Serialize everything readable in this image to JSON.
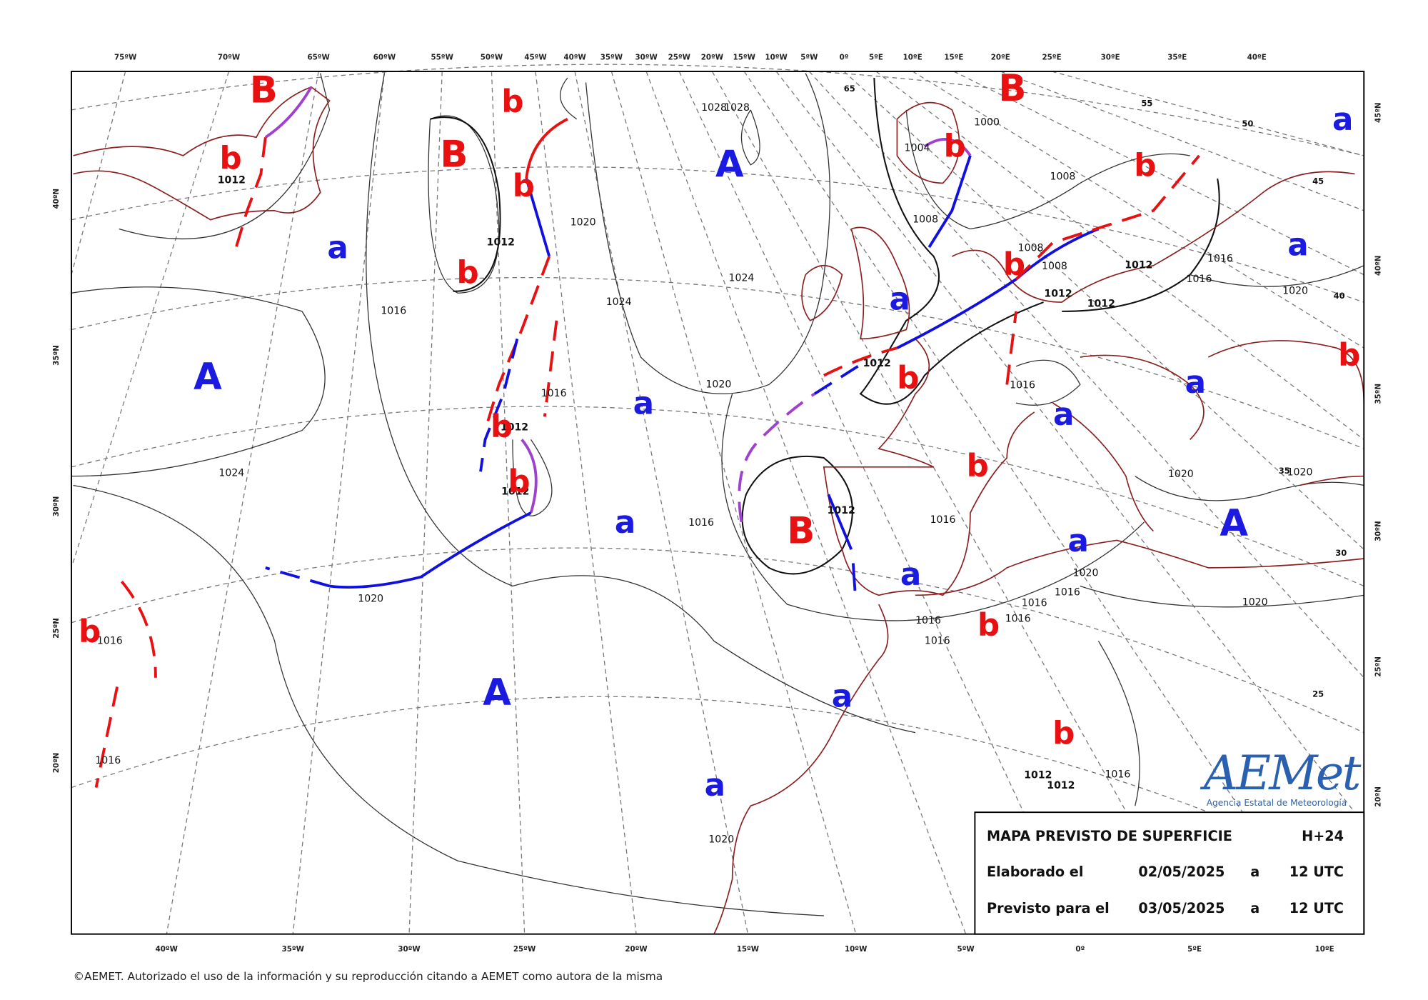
{
  "top_longitudes": [
    "75ºW",
    "70ºW",
    "65ºW",
    "60ºW",
    "55ºW",
    "50ºW",
    "45ºW",
    "40ºW",
    "35ºW",
    "30ºW",
    "25ºW",
    "20ºW",
    "15ºW",
    "10ºW",
    "5ºW",
    "0º",
    "5ºE",
    "10ºE",
    "15ºE",
    "20ºE",
    "25ºE",
    "30ºE",
    "35ºE",
    "40ºE"
  ],
  "bottom_longitudes": [
    "40ºW",
    "35ºW",
    "30ºW",
    "25ºW",
    "20ºW",
    "15ºW",
    "10ºW",
    "5ºW",
    "0º",
    "5ºE",
    "10ºE"
  ],
  "left_latitudes": [
    "40ºN",
    "35ºN",
    "30ºN",
    "25ºN",
    "20ºN"
  ],
  "right_latitudes": [
    "45ºN",
    "40ºN",
    "35ºN",
    "30ºN",
    "25ºN",
    "20ºN"
  ],
  "isobar_labels": [
    "1012",
    "1012",
    "1020",
    "1024",
    "1024",
    "1016",
    "1028",
    "1028",
    "1020",
    "1016",
    "1012",
    "1024",
    "1012",
    "1016",
    "1020",
    "1016",
    "1016",
    "1020",
    "1012",
    "1012",
    "1008",
    "1004",
    "1000",
    "1008",
    "1008",
    "1008",
    "1012",
    "1012",
    "1012",
    "1016",
    "1016",
    "1020",
    "1016",
    "1016",
    "1020",
    "1020",
    "1020",
    "1016",
    "1016",
    "1016",
    "1016",
    "1016",
    "1020",
    "1012",
    "1012",
    "1016"
  ],
  "thickness_labels": [
    "65",
    "55",
    "50",
    "45",
    "40",
    "35",
    "30",
    "25"
  ],
  "high_centers": [
    "A",
    "A",
    "A",
    "A",
    "a",
    "a",
    "a",
    "a",
    "a",
    "a",
    "a",
    "a",
    "a",
    "a",
    "a",
    "a"
  ],
  "low_centers": [
    "B",
    "B",
    "B",
    "B",
    "b",
    "b",
    "b",
    "b",
    "b",
    "b",
    "b",
    "b",
    "b",
    "b",
    "b",
    "b",
    "b",
    "b",
    "b"
  ],
  "legend": {
    "title": "MAPA PREVISTO DE SUPERFICIE",
    "step": "H+24",
    "rows": [
      {
        "label": "Elaborado el",
        "date": "02/05/2025",
        "at": "a",
        "time": "12 UTC"
      },
      {
        "label": "Previsto para el",
        "date": "03/05/2025",
        "at": "a",
        "time": "12 UTC"
      }
    ]
  },
  "logo": {
    "name": "AEMet",
    "subtitle": "Agencia Estatal de Meteorología"
  },
  "copyright": "©AEMET. Autorizado el uso de la información y su reproducción citando a AEMET como autora de la misma"
}
